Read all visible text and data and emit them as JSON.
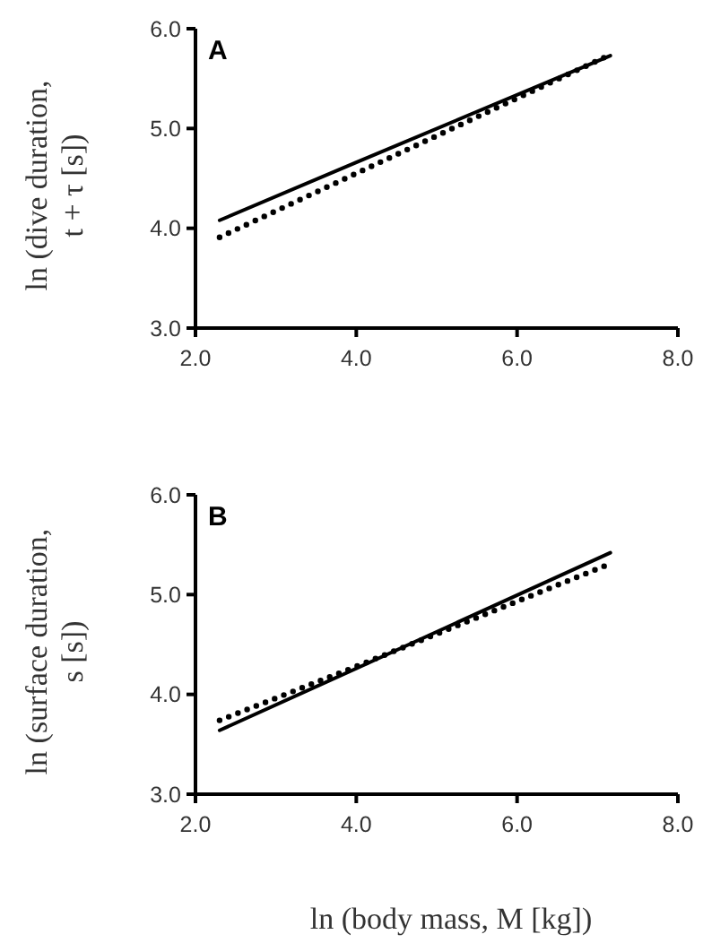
{
  "chart_data": [
    {
      "type": "line",
      "title": "A",
      "ylabel": "ln (dive duration, t + τ [s])",
      "xlim": [
        2,
        8
      ],
      "xticks": [
        {
          "value": 2,
          "label": "2.0"
        },
        {
          "value": 4,
          "label": "4.0"
        },
        {
          "value": 6,
          "label": "6.0"
        },
        {
          "value": 8,
          "label": "8.0"
        }
      ],
      "ylim": [
        3,
        6
      ],
      "yticks": [
        {
          "value": 3,
          "label": "3.0"
        },
        {
          "value": 4,
          "label": "4.0"
        },
        {
          "value": 5,
          "label": "5.0"
        },
        {
          "value": 6,
          "label": "6.0"
        }
      ],
      "grid": false,
      "marker": "none",
      "series": [
        {
          "color": "#000000",
          "line_style": "solid",
          "x": [
            2.3,
            4.0,
            7.16
          ],
          "values": [
            4.08,
            4.66,
            5.73
          ]
        },
        {
          "color": "#000000",
          "line_style": "dotted",
          "x": [
            2.3,
            4.0,
            7.16
          ],
          "values": [
            3.91,
            4.55,
            5.74
          ]
        }
      ]
    },
    {
      "type": "line",
      "title": "B",
      "xlabel": "ln (body mass, M [kg])",
      "ylabel": "ln (surface duration, s [s])",
      "xlim": [
        2,
        8
      ],
      "xticks": [
        {
          "value": 2,
          "label": "2.0"
        },
        {
          "value": 4,
          "label": "4.0"
        },
        {
          "value": 6,
          "label": "6.0"
        },
        {
          "value": 8,
          "label": "8.0"
        }
      ],
      "ylim": [
        3,
        6
      ],
      "yticks": [
        {
          "value": 3,
          "label": "3.0"
        },
        {
          "value": 4,
          "label": "4.0"
        },
        {
          "value": 5,
          "label": "5.0"
        },
        {
          "value": 6,
          "label": "6.0"
        }
      ],
      "grid": false,
      "marker": "none",
      "series": [
        {
          "color": "#000000",
          "line_style": "solid",
          "x": [
            2.3,
            4.0,
            7.16
          ],
          "values": [
            3.64,
            4.26,
            5.42
          ]
        },
        {
          "color": "#000000",
          "line_style": "dotted",
          "x": [
            2.3,
            4.0,
            7.16
          ],
          "values": [
            3.74,
            4.28,
            5.31
          ]
        }
      ]
    }
  ]
}
